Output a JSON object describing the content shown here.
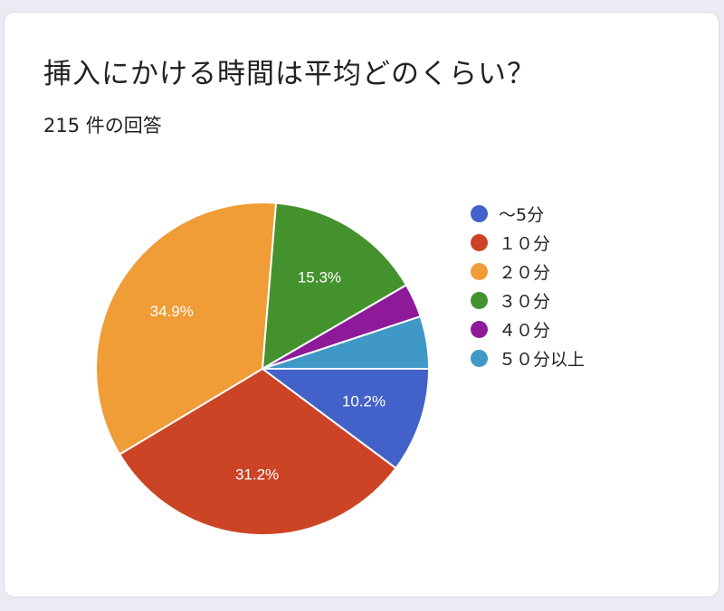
{
  "title": "挿入にかける時間は平均どのくらい？",
  "subtitle": "215 件の回答",
  "chart_data": {
    "type": "pie",
    "categories": [
      "～5分",
      "１０分",
      "２０分",
      "３０分",
      "４０分",
      "５０分以上"
    ],
    "values": [
      10.2,
      31.2,
      34.9,
      15.3,
      3.3,
      5.1
    ],
    "data_labels": [
      "10.2%",
      "31.2%",
      "34.9%",
      "15.3%",
      "",
      ""
    ],
    "colors": [
      "#4262c9",
      "#cc4425",
      "#f09c37",
      "#44922e",
      "#8d1b99",
      "#3f98c5"
    ],
    "start_direction": "3 o'clock, clockwise",
    "legend_placement": "right"
  }
}
